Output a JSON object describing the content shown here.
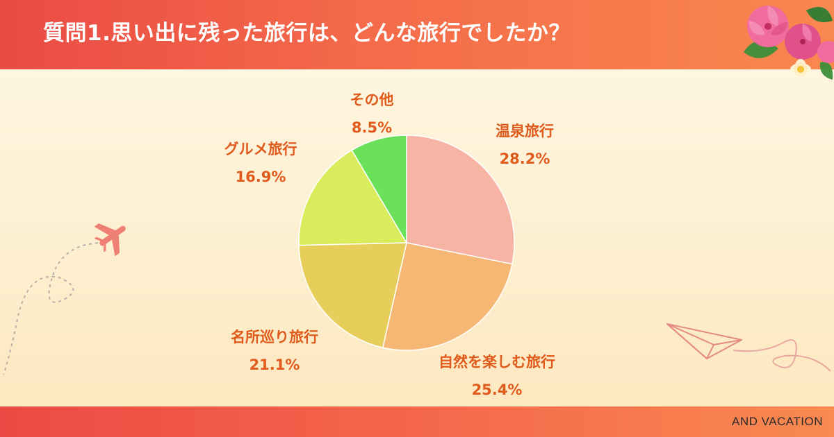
{
  "header": {
    "title": "質問1.思い出に残った旅行は、どんな旅行でしたか？"
  },
  "footer": {
    "brand": "AND VACATION"
  },
  "colors": {
    "header_start": "#ea4b44",
    "header_end": "#f9884f",
    "label_text": "#e05a1c",
    "background": "#fef8e6"
  },
  "icons": [
    "hibiscus-flower-icon",
    "airplane-icon",
    "paper-plane-icon"
  ],
  "chart_data": {
    "type": "pie",
    "start_angle": "top",
    "direction": "clockwise",
    "legend": "none",
    "slices": [
      {
        "label": "温泉旅行",
        "value_label": "28.2%",
        "value": 28.2,
        "color": "#f7b3a3"
      },
      {
        "label": "自然を楽しむ旅行",
        "value_label": "25.4%",
        "value": 25.4,
        "color": "#f5b773"
      },
      {
        "label": "名所巡り旅行",
        "value_label": "21.1%",
        "value": 21.1,
        "color": "#e7cd59"
      },
      {
        "label": "グルメ旅行",
        "value_label": "16.9%",
        "value": 16.9,
        "color": "#d9ec5c"
      },
      {
        "label": "その他",
        "value_label": "8.5%",
        "value": 8.5,
        "color": "#6be05a"
      }
    ]
  }
}
